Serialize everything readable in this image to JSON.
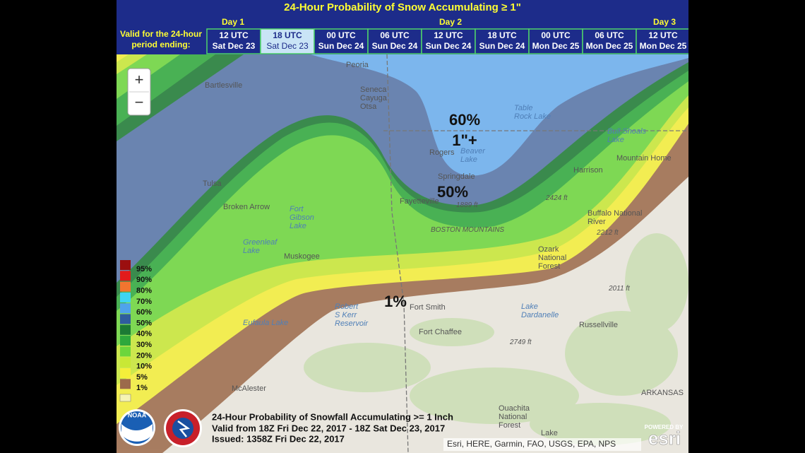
{
  "header": {
    "title": "24-Hour Probability of Snow Accumulating ≥ 1\"",
    "days": [
      "Day 1",
      "Day 2",
      "Day 3"
    ],
    "valid_label": [
      "Valid for the 24-hour",
      "period ending:"
    ],
    "tabs": [
      {
        "time": "12 UTC",
        "date": "Sat Dec 23"
      },
      {
        "time": "18 UTC",
        "date": "Sat Dec 23"
      },
      {
        "time": "00 UTC",
        "date": "Sun Dec 24"
      },
      {
        "time": "06 UTC",
        "date": "Sun Dec 24"
      },
      {
        "time": "12 UTC",
        "date": "Sun Dec 24"
      },
      {
        "time": "18 UTC",
        "date": "Sun Dec 24"
      },
      {
        "time": "00 UTC",
        "date": "Mon Dec 25"
      },
      {
        "time": "06 UTC",
        "date": "Mon Dec 25"
      },
      {
        "time": "12 UTC",
        "date": "Mon Dec 25"
      }
    ],
    "selected_tab": 1
  },
  "zoom": {
    "in": "+",
    "out": "−"
  },
  "legend": [
    {
      "label": "95%",
      "color": "#9b0f0f"
    },
    {
      "label": "90%",
      "color": "#e21b1b"
    },
    {
      "label": "80%",
      "color": "#f2752f"
    },
    {
      "label": "70%",
      "color": "#3fd4f2"
    },
    {
      "label": "60%",
      "color": "#4fa3ec"
    },
    {
      "label": "50%",
      "color": "#2f5d9e"
    },
    {
      "label": "40%",
      "color": "#1c7a34"
    },
    {
      "label": "30%",
      "color": "#2ea83c"
    },
    {
      "label": "20%",
      "color": "#6cd63c"
    },
    {
      "label": "10%",
      "color": "#c8e835"
    },
    {
      "label": "5%",
      "color": "#f4ef3a"
    },
    {
      "label": "1%",
      "color": "#9c6a4b"
    }
  ],
  "overlay": [
    "60%",
    "1\"+",
    "50%",
    "1%"
  ],
  "map": {
    "labels": [
      [
        "Bartlesville"
      ],
      [
        "Tulsa"
      ],
      [
        "Broken Arrow"
      ],
      [
        "Muskogee"
      ],
      [
        "McAlester"
      ],
      [
        "Eufaula Lake"
      ],
      [
        "Greenleaf",
        "Lake"
      ],
      [
        "Fort",
        "Gibson",
        "Lake"
      ],
      [
        "Fort Smith"
      ],
      [
        "Fort Chaffee"
      ],
      [
        "Fayetteville"
      ],
      [
        "Springdale"
      ],
      [
        "Rogers"
      ],
      [
        "Beaver",
        "Lake"
      ],
      [
        "Harrison"
      ],
      [
        "Mountain Home"
      ],
      [
        "Russellville"
      ],
      [
        "Lake",
        "Dardanelle"
      ],
      [
        "Bull Shoals",
        "Lake"
      ],
      [
        "Table",
        "Rock Lake"
      ],
      [
        "Buffalo National",
        "River"
      ],
      [
        "Ozark",
        "National",
        "Forest"
      ],
      [
        "Ouachita",
        "National",
        "Forest"
      ],
      [
        "Robert",
        "S Kerr",
        "Reservoir"
      ],
      [
        "BOSTON MOUNTAINS"
      ],
      [
        "ARKANSAS"
      ],
      [
        "Seneca",
        "Cayuga",
        "Otsa"
      ],
      [
        "Peoria"
      ],
      [
        "1889 ft"
      ],
      [
        "2424 ft"
      ],
      [
        "2212 ft"
      ],
      [
        "2011 ft"
      ],
      [
        "2749 ft"
      ],
      [
        "Lake"
      ]
    ]
  },
  "footer": {
    "lines": [
      "24-Hour Probability of Snowfall Accumulating >= 1 Inch",
      "Valid from 18Z Fri Dec 22, 2017 - 18Z Sat Dec 23, 2017",
      "Issued: 1358Z Fri Dec 22, 2017"
    ],
    "noaa": "NOAA",
    "attribution": "Esri, HERE, Garmin, FAO, USGS, EPA, NPS",
    "powered": "POWERED BY",
    "esri": "esri"
  }
}
